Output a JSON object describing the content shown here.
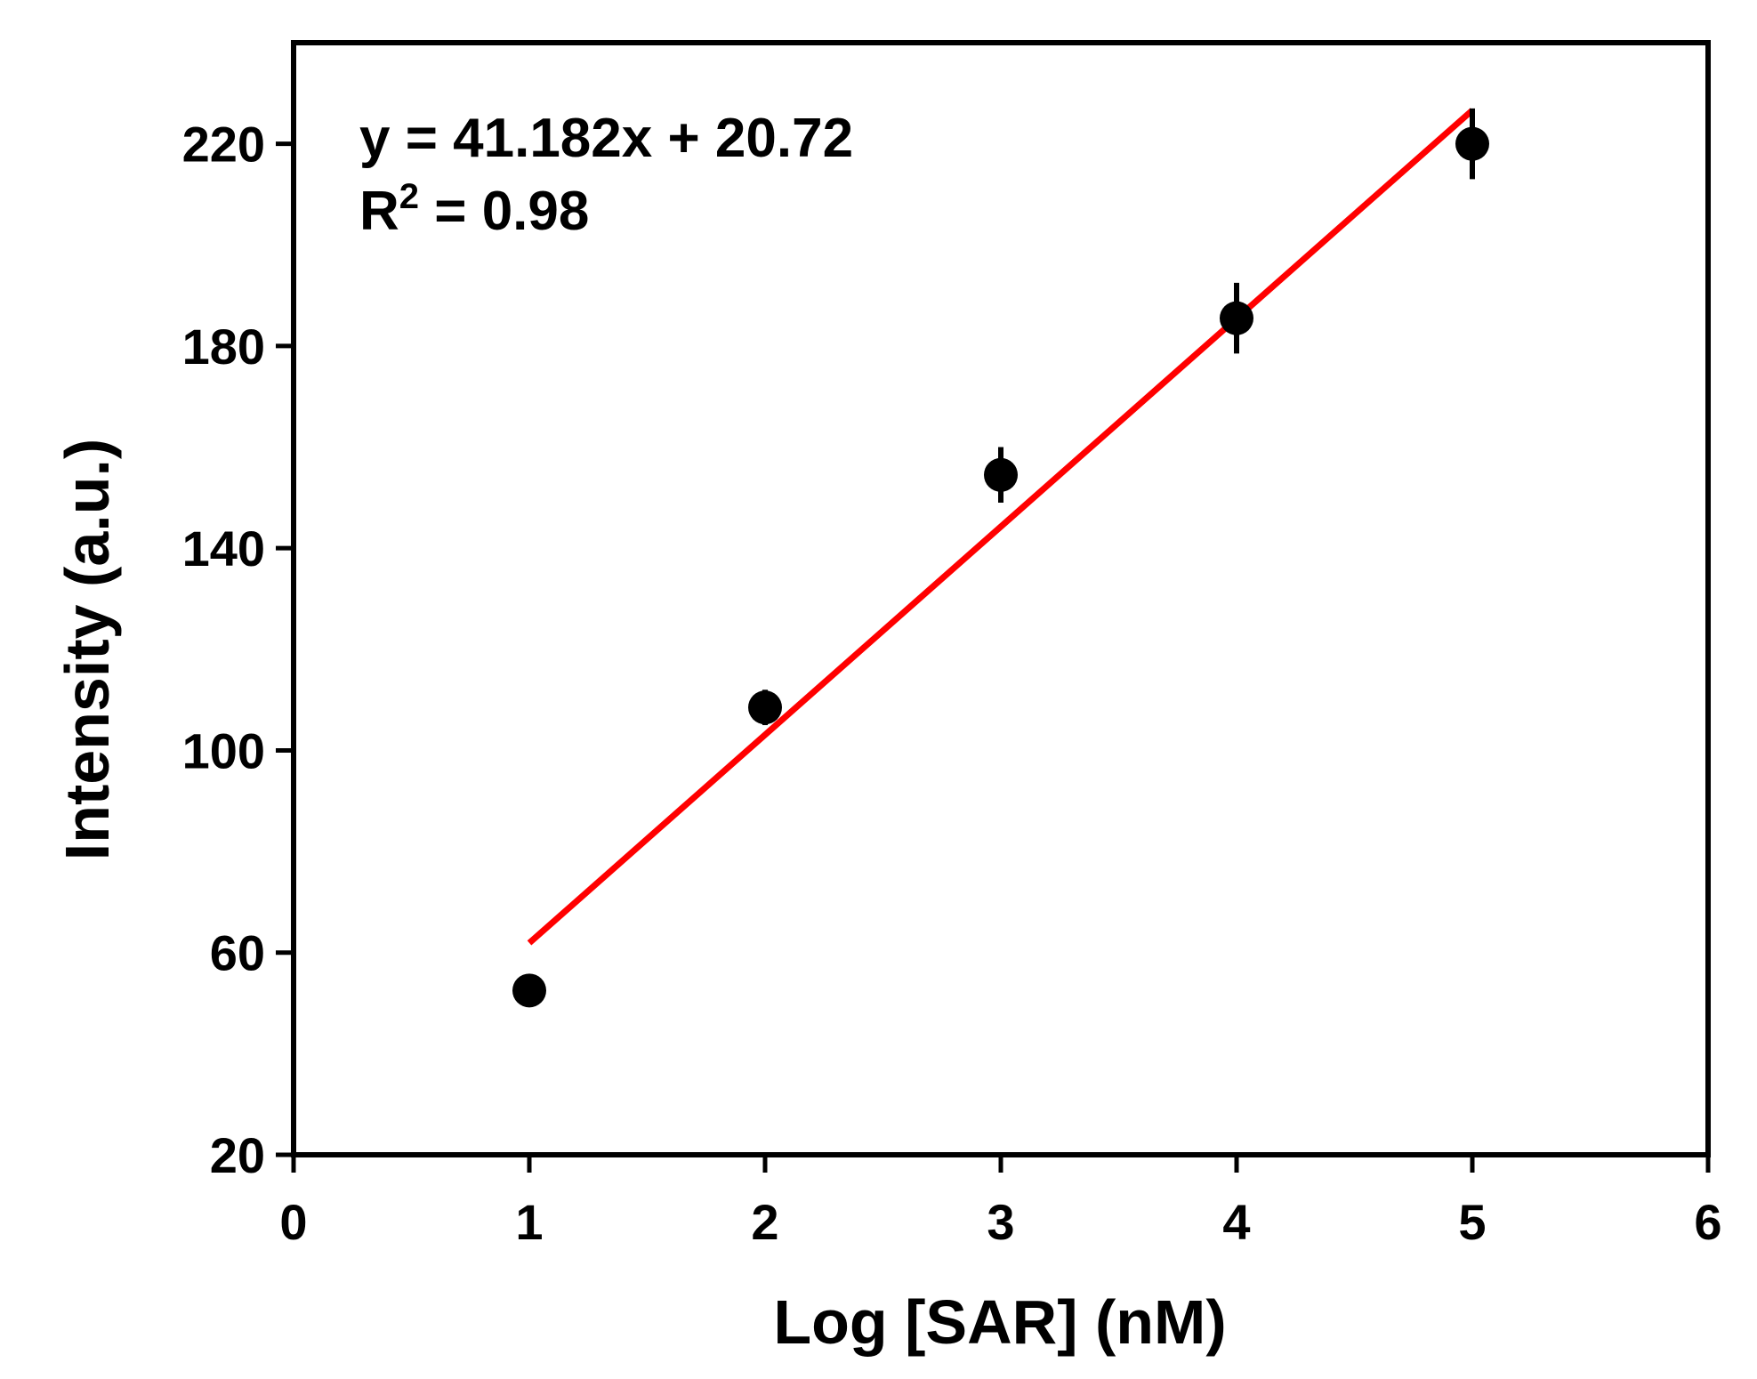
{
  "chart_data": {
    "type": "scatter",
    "title": "",
    "xlabel": "Log [SAR] (nM)",
    "ylabel": "Intensity (a.u.)",
    "xlim": [
      0,
      6
    ],
    "ylim": [
      20,
      240
    ],
    "x_ticks": [
      0,
      1,
      2,
      3,
      4,
      5,
      6
    ],
    "x_tick_labels": [
      "0",
      "1",
      "2",
      "3",
      "4",
      "5",
      "6"
    ],
    "y_ticks": [
      20,
      60,
      100,
      140,
      180,
      220
    ],
    "y_tick_labels": [
      "20",
      "60",
      "100",
      "140",
      "180",
      "220"
    ],
    "grid": false,
    "legend": "none",
    "series": [
      {
        "x": [
          1,
          2,
          3,
          4,
          5
        ],
        "y": [
          52.5,
          108.5,
          154.5,
          185.5,
          220
        ],
        "error": [
          1.5,
          3.5,
          5.5,
          7,
          7
        ],
        "color": "#000000",
        "marker": "filled-circle"
      }
    ],
    "fit_line": {
      "slope": 41.182,
      "intercept": 20.72,
      "x_range": [
        1,
        5
      ],
      "color": "#ff0000"
    },
    "annotation": {
      "equation": "y = 41.182x + 20.72",
      "r2_prefix": "R",
      "r2_superscript": "2",
      "r2_value": " = 0.98"
    }
  }
}
